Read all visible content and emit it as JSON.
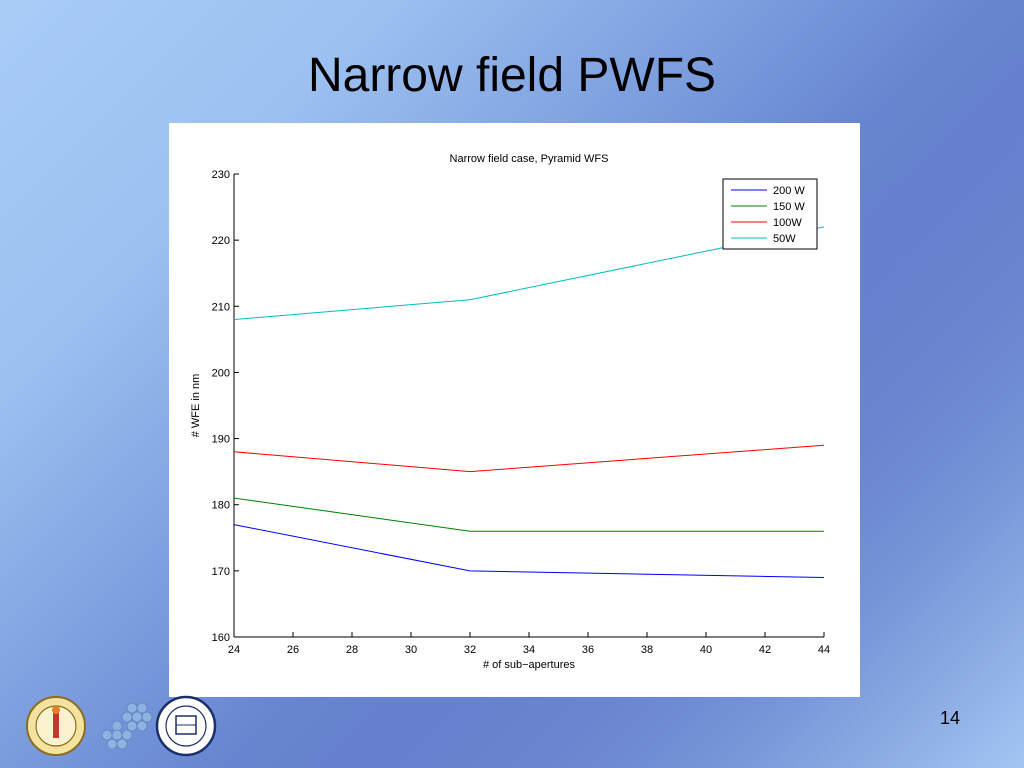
{
  "slide": {
    "title": "Narrow field PWFS",
    "page_number": "14"
  },
  "logos": [
    "caltech-seal",
    "hexagon-mirror-logo",
    "uc-seal"
  ],
  "chart_data": {
    "type": "line",
    "title": "Narrow field case, Pyramid WFS",
    "xlabel": "# of sub−apertures",
    "ylabel": "# WFE in nm",
    "xlim": [
      24,
      44
    ],
    "ylim": [
      160,
      230
    ],
    "xticks": [
      24,
      26,
      28,
      30,
      32,
      34,
      36,
      38,
      40,
      42,
      44
    ],
    "yticks": [
      160,
      170,
      180,
      190,
      200,
      210,
      220,
      230
    ],
    "grid": false,
    "legend_position": "top-right",
    "series": [
      {
        "name": "200 W",
        "color": "#0000ff",
        "x": [
          24,
          32,
          44
        ],
        "y": [
          177,
          170,
          169
        ]
      },
      {
        "name": "150 W",
        "color": "#008000",
        "x": [
          24,
          32,
          44
        ],
        "y": [
          181,
          176,
          176
        ]
      },
      {
        "name": "100W",
        "color": "#ff0000",
        "x": [
          24,
          32,
          44
        ],
        "y": [
          188,
          185,
          189
        ]
      },
      {
        "name": "50W",
        "color": "#00bfbf",
        "x": [
          24,
          32,
          44
        ],
        "y": [
          208,
          211,
          222
        ]
      }
    ]
  }
}
